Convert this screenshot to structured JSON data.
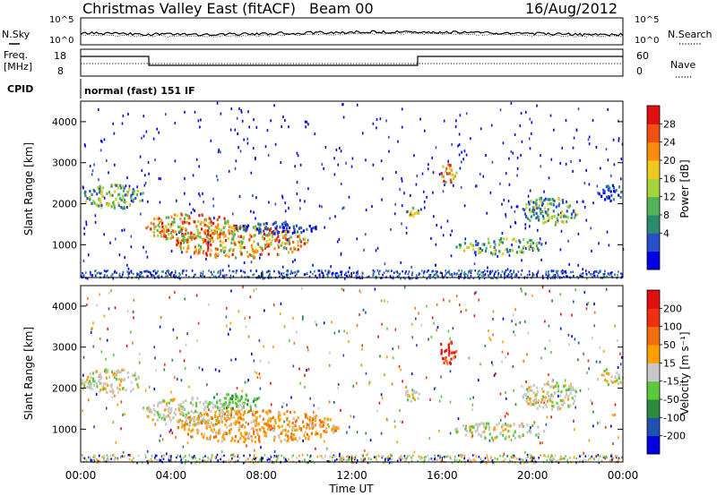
{
  "header": {
    "title": "Christmas Valley East (fitACF)",
    "beam": "Beam 00",
    "date": "16/Aug/2012"
  },
  "top_panels": {
    "nsky_label": "N.Sky",
    "nsearch_label": "N.Search",
    "freq_label_1": "Freq.",
    "freq_label_2": "[MHz]",
    "nave_label": "Nave",
    "cpid_label": "CPID",
    "cpid_text": "normal (fast) 151 IF",
    "noise_ticks_left": [
      "10^5",
      "10^0"
    ],
    "noise_ticks_right": [
      "10^5",
      "10^0"
    ],
    "freq_ticks": [
      "18",
      "8"
    ],
    "nave_ticks": [
      "60",
      "0"
    ]
  },
  "chart_data": [
    {
      "type": "heatmap",
      "panel": "power",
      "ylabel": "Slant Range [km]",
      "ylim": [
        200,
        4500
      ],
      "yticks": [
        "1000",
        "2000",
        "3000",
        "4000"
      ],
      "colorbar_label": "Power [dB]",
      "colorbar_ticks": [
        "28",
        "24",
        "20",
        "16",
        "12",
        "8",
        "4"
      ],
      "colors": [
        "#0000e0",
        "#2850c8",
        "#2e8a6e",
        "#52b35a",
        "#a6d23c",
        "#f0c820",
        "#ff8c10",
        "#f05014",
        "#e01010"
      ],
      "blobs": [
        {
          "t": [
            0.0,
            2.8
          ],
          "r": [
            1900,
            2500
          ],
          "level": "medium"
        },
        {
          "t": [
            2.8,
            6.8
          ],
          "r": [
            1100,
            1800
          ],
          "level": "high"
        },
        {
          "t": [
            4.0,
            10.0
          ],
          "r": [
            700,
            1500
          ],
          "level": "high"
        },
        {
          "t": [
            7.0,
            10.5
          ],
          "r": [
            1300,
            1600
          ],
          "level": "low"
        },
        {
          "t": [
            14.2,
            15.0
          ],
          "r": [
            1700,
            2000
          ],
          "level": "medium"
        },
        {
          "t": [
            15.8,
            16.6
          ],
          "r": [
            2500,
            3000
          ],
          "level": "high"
        },
        {
          "t": [
            16.5,
            20.5
          ],
          "r": [
            800,
            1200
          ],
          "level": "medium"
        },
        {
          "t": [
            19.5,
            22.0
          ],
          "r": [
            1500,
            2200
          ],
          "level": "medium"
        },
        {
          "t": [
            22.8,
            24.0
          ],
          "r": [
            2100,
            2500
          ],
          "level": "low"
        }
      ]
    },
    {
      "type": "heatmap",
      "panel": "velocity",
      "xlabel": "Time UT",
      "ylabel": "Slant Range [km]",
      "ylim": [
        200,
        4500
      ],
      "yticks": [
        "1000",
        "2000",
        "3000",
        "4000"
      ],
      "xticks": [
        "00:00",
        "04:00",
        "08:00",
        "12:00",
        "16:00",
        "20:00",
        "00:00"
      ],
      "xlim_hours": [
        0,
        24
      ],
      "colorbar_label": "Velocity [m s⁻¹]",
      "colorbar_ticks": [
        "200",
        "100",
        "50",
        "15",
        "-15",
        "-50",
        "-100",
        "-200"
      ],
      "colors": [
        "#0000e0",
        "#2050b0",
        "#2c8a3c",
        "#5cc83c",
        "#c8c8c8",
        "#ffa000",
        "#f07010",
        "#f03010",
        "#e01010"
      ],
      "blobs": [
        {
          "t": [
            0.0,
            2.8
          ],
          "r": [
            1900,
            2500
          ],
          "level": "grey"
        },
        {
          "t": [
            2.8,
            6.8
          ],
          "r": [
            1100,
            1800
          ],
          "level": "grey"
        },
        {
          "t": [
            5.5,
            8.0
          ],
          "r": [
            1500,
            1900
          ],
          "level": "green"
        },
        {
          "t": [
            4.0,
            11.5
          ],
          "r": [
            700,
            1500
          ],
          "level": "orange"
        },
        {
          "t": [
            14.2,
            15.0
          ],
          "r": [
            1700,
            2000
          ],
          "level": "grey"
        },
        {
          "t": [
            15.8,
            16.6
          ],
          "r": [
            2600,
            3200
          ],
          "level": "red"
        },
        {
          "t": [
            16.5,
            20.5
          ],
          "r": [
            800,
            1200
          ],
          "level": "grey"
        },
        {
          "t": [
            19.5,
            22.0
          ],
          "r": [
            1500,
            2200
          ],
          "level": "grey"
        },
        {
          "t": [
            22.8,
            24.0
          ],
          "r": [
            2100,
            2500
          ],
          "level": "grey"
        }
      ]
    }
  ]
}
